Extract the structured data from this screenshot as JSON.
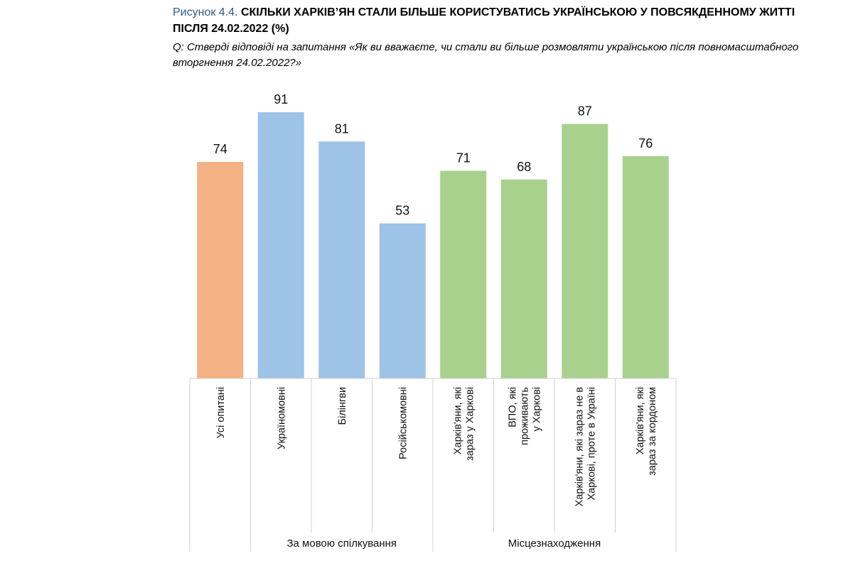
{
  "figure": {
    "label": "Рисунок 4.4.",
    "title": "СКІЛЬКИ ХАРКІВ’ЯН СТАЛИ БІЛЬШЕ КОРИСТУВАТИСЬ УКРАЇНСЬКОЮ У ПОВСЯКДЕННОМУ ЖИТТІ ПІСЛЯ 24.02.2022 (%)",
    "question": "Q: Стверді відповіді на запитання «Як ви вважаєте, чи стали ви більше розмовляти українською після повномасштабного вторгнення 24.02.2022?»"
  },
  "chart_data": {
    "type": "bar",
    "categories": [
      "Усі опитані",
      "Україномовні",
      "Білінгви",
      "Російськомовні",
      "Харків'яни, які зараз у Харкові",
      "ВПО, які проживають у Харкові",
      "Харків'яни, які зараз не в Харкові, проте в Україні",
      "Харків'яни, які зараз за кордоном"
    ],
    "category_lines": [
      [
        "Усі опитані"
      ],
      [
        "Україномовні"
      ],
      [
        "Білінгви"
      ],
      [
        "Російськомовні"
      ],
      [
        "Харків'яни, які",
        "зараз у Харкові"
      ],
      [
        "ВПО, які",
        "проживають",
        "у Харкові"
      ],
      [
        "Харків'яни, які зараз не в",
        "Харкові, проте в Україні"
      ],
      [
        "Харків'яни, які",
        "зараз за кордоном"
      ]
    ],
    "values": [
      74,
      91,
      81,
      53,
      71,
      68,
      87,
      76
    ],
    "colors": [
      "#f4b183",
      "#9dc3e6",
      "#9dc3e6",
      "#9dc3e6",
      "#a9d18e",
      "#a9d18e",
      "#a9d18e",
      "#a9d18e"
    ],
    "groups": [
      {
        "label": "За мовою спілкування",
        "start": 1,
        "end": 3
      },
      {
        "label": "Місцезнаходження",
        "start": 4,
        "end": 7
      }
    ],
    "ylim": [
      0,
      100
    ],
    "grid": false,
    "legend": "none"
  }
}
